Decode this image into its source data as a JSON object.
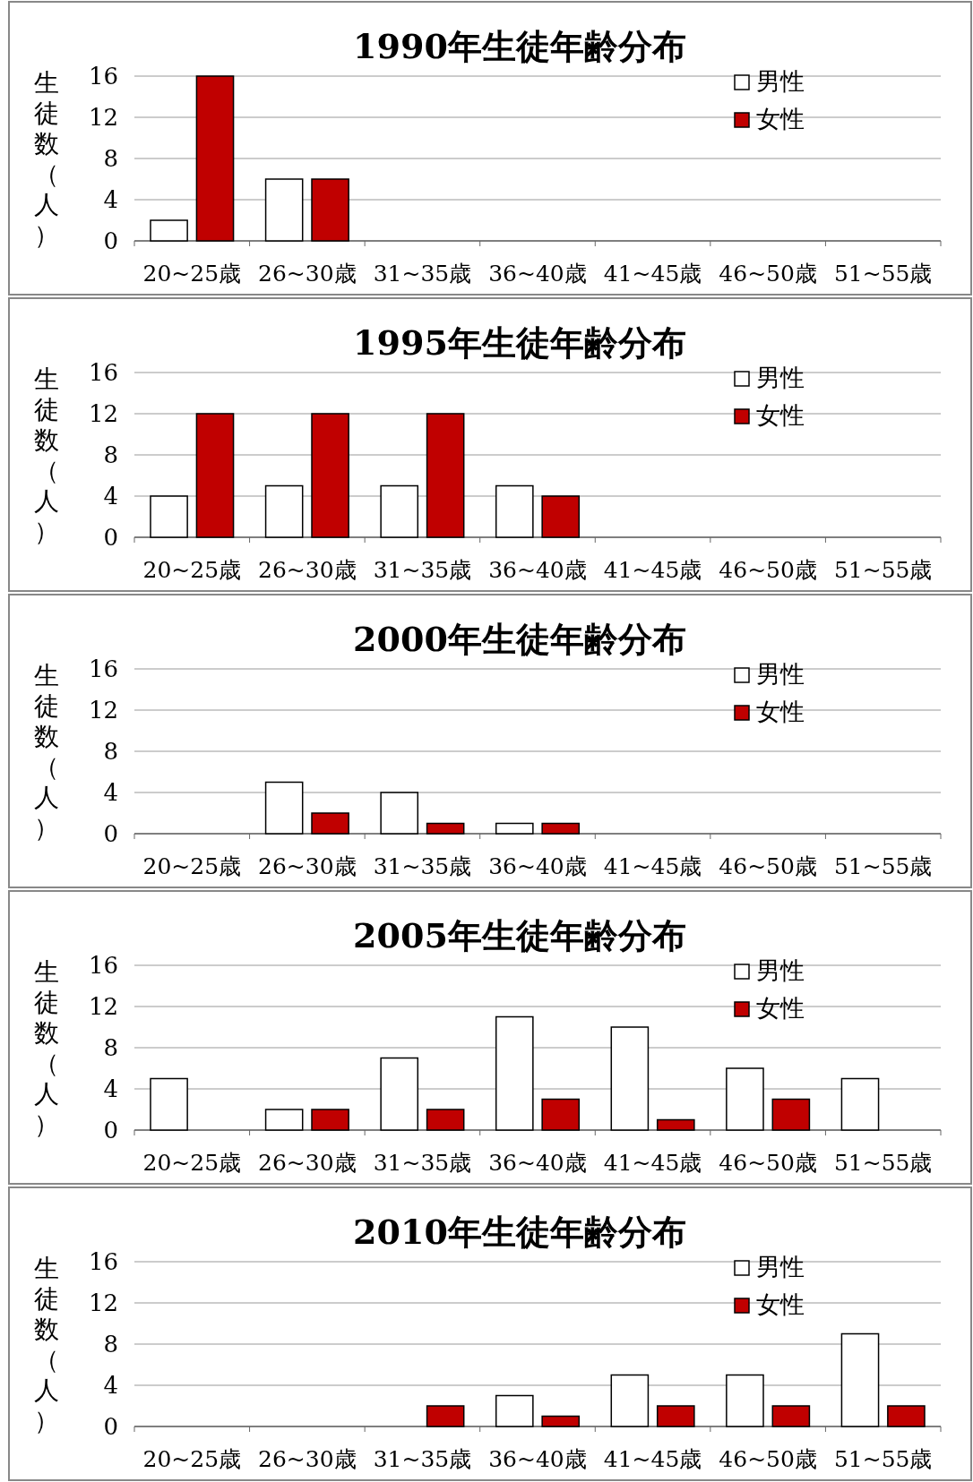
{
  "chart_data": [
    {
      "type": "bar",
      "title": "1990年生徒年齢分布",
      "ylabel": "生徒数（人）",
      "categories": [
        "20~25歳",
        "26~30歳",
        "31~35歳",
        "36~40歳",
        "41~45歳",
        "46~50歳",
        "51~55歳"
      ],
      "series": [
        {
          "name": "男性",
          "color": "#ffffff",
          "values": [
            2,
            6,
            0,
            0,
            0,
            0,
            0
          ]
        },
        {
          "name": "女性",
          "color": "#c00000",
          "values": [
            16,
            6,
            0,
            0,
            0,
            0,
            0
          ]
        }
      ],
      "ylim": [
        0,
        16
      ],
      "yticks": [
        0,
        4,
        8,
        12,
        16
      ],
      "grid": "y",
      "legend": "top right"
    },
    {
      "type": "bar",
      "title": "1995年生徒年齢分布",
      "ylabel": "生徒数（人）",
      "categories": [
        "20~25歳",
        "26~30歳",
        "31~35歳",
        "36~40歳",
        "41~45歳",
        "46~50歳",
        "51~55歳"
      ],
      "series": [
        {
          "name": "男性",
          "color": "#ffffff",
          "values": [
            4,
            5,
            5,
            5,
            0,
            0,
            0
          ]
        },
        {
          "name": "女性",
          "color": "#c00000",
          "values": [
            12,
            12,
            12,
            4,
            0,
            0,
            0
          ]
        }
      ],
      "ylim": [
        0,
        16
      ],
      "yticks": [
        0,
        4,
        8,
        12,
        16
      ],
      "grid": "y",
      "legend": "top right"
    },
    {
      "type": "bar",
      "title": "2000年生徒年齢分布",
      "ylabel": "生徒数（人）",
      "categories": [
        "20~25歳",
        "26~30歳",
        "31~35歳",
        "36~40歳",
        "41~45歳",
        "46~50歳",
        "51~55歳"
      ],
      "series": [
        {
          "name": "男性",
          "color": "#ffffff",
          "values": [
            0,
            5,
            4,
            1,
            0,
            0,
            0
          ]
        },
        {
          "name": "女性",
          "color": "#c00000",
          "values": [
            0,
            2,
            1,
            1,
            0,
            0,
            0
          ]
        }
      ],
      "ylim": [
        0,
        16
      ],
      "yticks": [
        0,
        4,
        8,
        12,
        16
      ],
      "grid": "y",
      "legend": "top right"
    },
    {
      "type": "bar",
      "title": "2005年生徒年齢分布",
      "ylabel": "生徒数（人）",
      "categories": [
        "20~25歳",
        "26~30歳",
        "31~35歳",
        "36~40歳",
        "41~45歳",
        "46~50歳",
        "51~55歳"
      ],
      "series": [
        {
          "name": "男性",
          "color": "#ffffff",
          "values": [
            5,
            2,
            7,
            11,
            10,
            6,
            5
          ]
        },
        {
          "name": "女性",
          "color": "#c00000",
          "values": [
            0,
            2,
            2,
            3,
            1,
            3,
            0
          ]
        }
      ],
      "ylim": [
        0,
        16
      ],
      "yticks": [
        0,
        4,
        8,
        12,
        16
      ],
      "grid": "y",
      "legend": "top right"
    },
    {
      "type": "bar",
      "title": "2010年生徒年齢分布",
      "ylabel": "生徒数（人）",
      "categories": [
        "20~25歳",
        "26~30歳",
        "31~35歳",
        "36~40歳",
        "41~45歳",
        "46~50歳",
        "51~55歳"
      ],
      "series": [
        {
          "name": "男性",
          "color": "#ffffff",
          "values": [
            0,
            0,
            0,
            3,
            5,
            5,
            9
          ]
        },
        {
          "name": "女性",
          "color": "#c00000",
          "values": [
            0,
            0,
            2,
            1,
            2,
            2,
            2
          ]
        }
      ],
      "ylim": [
        0,
        16
      ],
      "yticks": [
        0,
        4,
        8,
        12,
        16
      ],
      "grid": "y",
      "legend": "top right"
    }
  ]
}
